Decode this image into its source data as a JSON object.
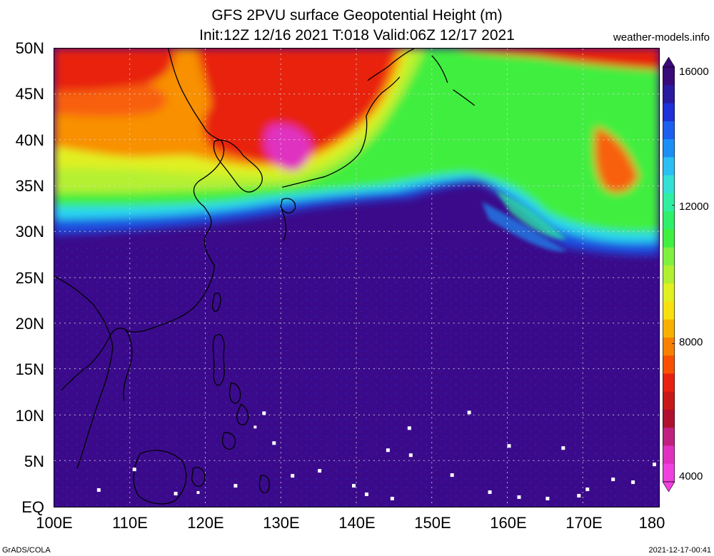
{
  "title": {
    "line1": "GFS 2PVU surface Geopotential Height (m)",
    "line2": "Init:12Z 12/16 2021 T:018 Valid:06Z 12/17 2021"
  },
  "brand": "weather-models.info",
  "axes": {
    "y_labels": [
      "50N",
      "45N",
      "40N",
      "35N",
      "30N",
      "25N",
      "20N",
      "15N",
      "10N",
      "5N",
      "EQ"
    ],
    "x_labels": [
      "100E",
      "110E",
      "120E",
      "130E",
      "140E",
      "150E",
      "160E",
      "170E",
      "180"
    ]
  },
  "colorbar": {
    "labels": [
      "16000",
      "12000",
      "8000",
      "4000"
    ],
    "colors": [
      "#3a0a7a",
      "#2a1aa0",
      "#1d2fd6",
      "#1b5ef0",
      "#1b8ff5",
      "#2bbff3",
      "#33e0d6",
      "#2ef0a0",
      "#2ef06a",
      "#40f040",
      "#80f040",
      "#b0f030",
      "#e0f020",
      "#f8e010",
      "#f8b000",
      "#f88000",
      "#f85000",
      "#e82010",
      "#c81818",
      "#b01030",
      "#c02080",
      "#e030c0",
      "#f040e0"
    ]
  },
  "footer": {
    "left": "GrADS/COLA",
    "right": "2021-12-17-00:41"
  },
  "palette": {
    "purple": "#3b0a8a",
    "red": "#e82010",
    "green": "#40ee40",
    "yellow": "#e0f020",
    "cyan": "#2bd6f0",
    "blue": "#1b4fe0"
  }
}
